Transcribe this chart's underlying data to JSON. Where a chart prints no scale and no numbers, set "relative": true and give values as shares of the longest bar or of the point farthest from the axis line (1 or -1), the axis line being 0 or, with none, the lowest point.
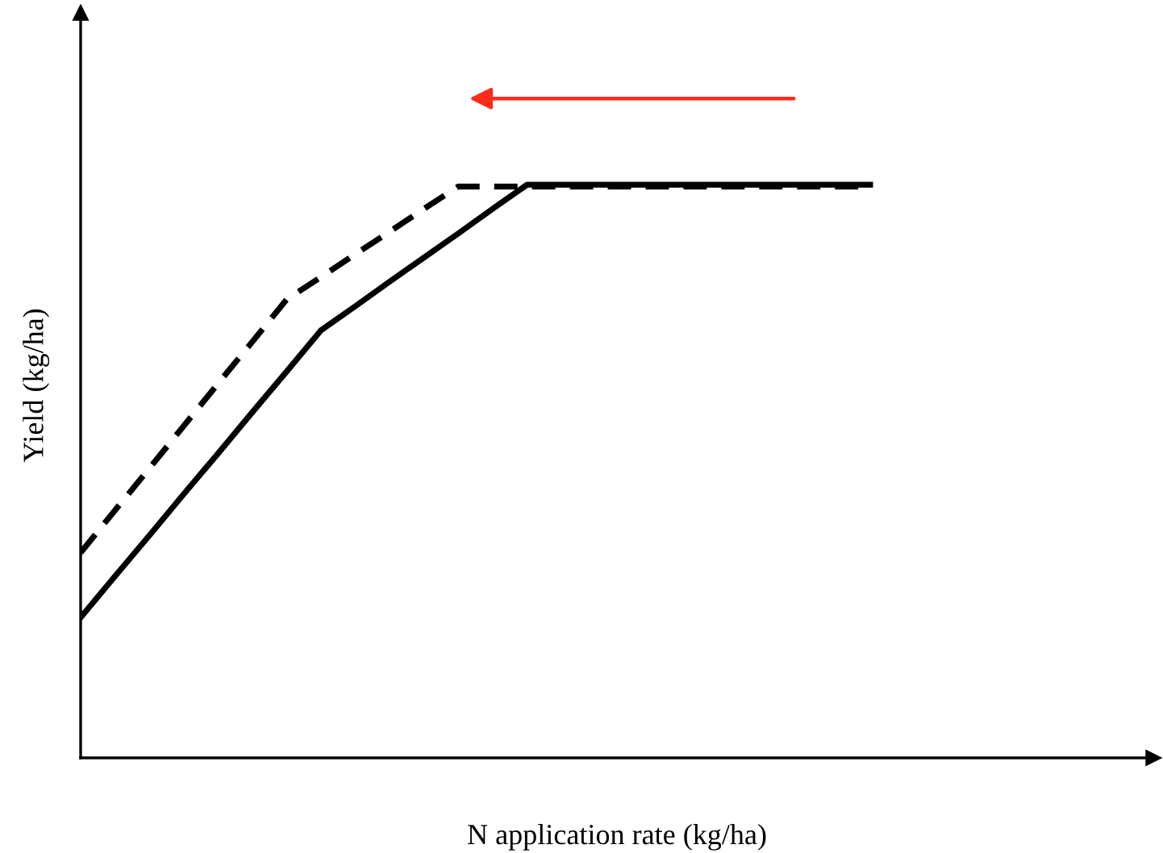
{
  "chart_data": {
    "type": "line",
    "relative": true,
    "xlabel": "N application rate (kg/ha)",
    "ylabel": "Yield (kg/ha)",
    "categories": [
      null,
      null,
      null,
      null,
      null,
      null,
      null,
      null,
      null,
      null,
      null,
      null,
      null,
      null,
      null,
      null,
      null,
      null,
      null,
      null,
      null,
      null,
      null,
      null,
      null,
      null,
      null,
      null,
      null,
      null,
      null,
      null
    ],
    "series": [
      {
        "color": "#000000",
        "line_style": "solid",
        "values": [
          0.245,
          0.317,
          0.388,
          0.46,
          0.531,
          0.603,
          0.674,
          0.746,
          0.788,
          0.831,
          0.873,
          0.915,
          0.958,
          1,
          1,
          1,
          1,
          1,
          1,
          1,
          1,
          1,
          1,
          1,
          null,
          null,
          null,
          null,
          null,
          null,
          null,
          null
        ]
      },
      {
        "color": "#000000",
        "line_style": "dashed",
        "values": [
          0.358,
          0.432,
          0.505,
          0.579,
          0.653,
          0.726,
          0.8,
          0.839,
          0.879,
          0.918,
          0.958,
          0.997,
          0.997,
          0.997,
          0.997,
          0.997,
          0.997,
          0.997,
          0.997,
          0.997,
          0.997,
          0.997,
          0.997,
          0.997,
          null,
          null,
          null,
          null,
          null,
          null,
          null,
          null
        ]
      }
    ]
  }
}
